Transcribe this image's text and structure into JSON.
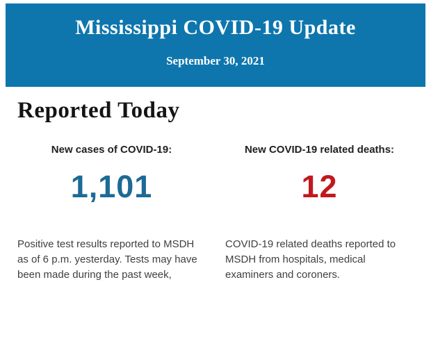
{
  "header": {
    "title": "Mississippi COVID-19 Update",
    "date": "September 30, 2021",
    "bg_color": "#0e76ad",
    "text_color": "#ffffff"
  },
  "main": {
    "heading": "Reported Today",
    "stats": [
      {
        "label": "New cases of COVID-19:",
        "value": "1,101",
        "value_color": "#1d6a96",
        "description": "Positive test results reported to MSDH as of 6 p.m. yesterday. Tests may have been made during the past week,"
      },
      {
        "label": "New COVID-19 related deaths:",
        "value": "12",
        "value_color": "#c0191f",
        "description": "COVID-19 related deaths reported to MSDH from hospitals, medical examiners and coroners."
      }
    ]
  }
}
